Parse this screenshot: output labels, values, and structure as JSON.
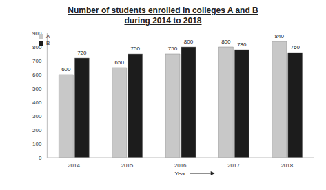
{
  "chart_data": {
    "type": "bar",
    "title": "Number of students enrolled in colleges A and B during 2014 to 2018",
    "xlabel": "Year",
    "categories": [
      "2014",
      "2015",
      "2016",
      "2017",
      "2018"
    ],
    "series": [
      {
        "name": "A",
        "color": "#c8c8c8",
        "values": [
          600,
          650,
          750,
          800,
          840
        ]
      },
      {
        "name": "B",
        "color": "#1c1c1c",
        "values": [
          720,
          750,
          800,
          780,
          760
        ]
      }
    ],
    "ylim": [
      0,
      900
    ],
    "yticks": [
      0,
      100,
      200,
      300,
      400,
      500,
      600,
      700,
      800,
      900
    ],
    "data_labels": true,
    "legend": "top-left"
  }
}
